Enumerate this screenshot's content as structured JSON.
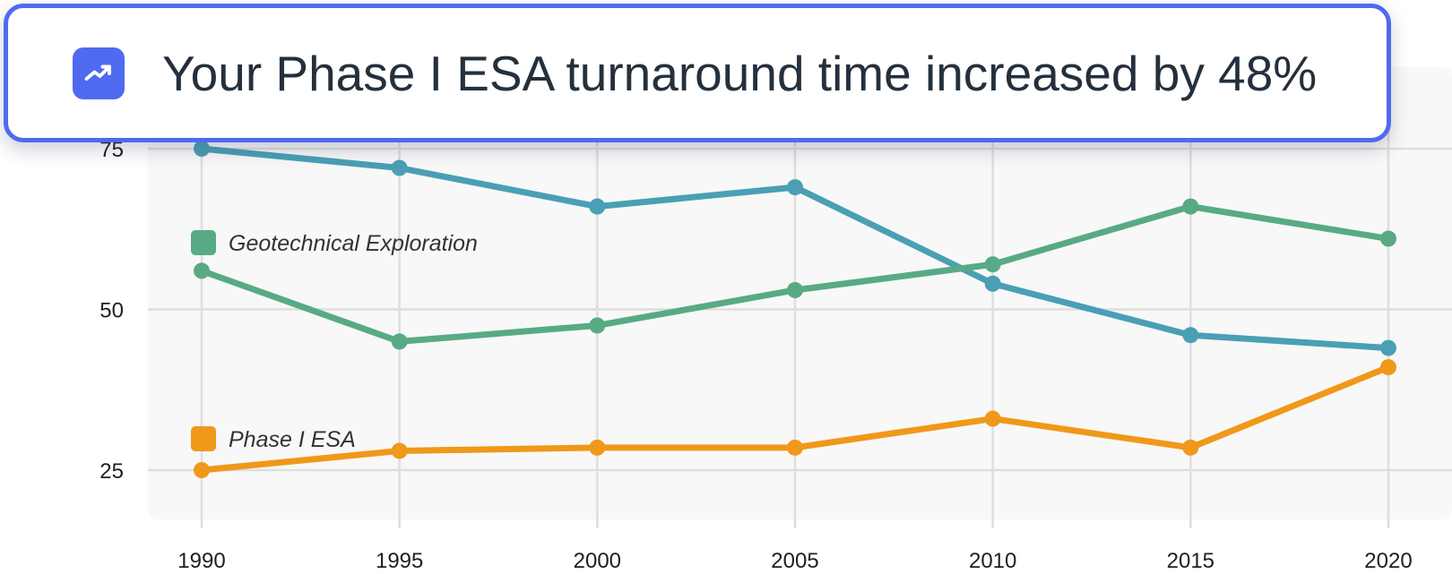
{
  "notification": {
    "message": "Your Phase I ESA turnaround time increased by 48%",
    "icon": "trending-up-icon",
    "accent_color": "#4f6af0"
  },
  "chart_data": {
    "type": "line",
    "title": "",
    "xlabel": "",
    "ylabel": "",
    "x": [
      1990,
      1995,
      2000,
      2005,
      2010,
      2015,
      2020
    ],
    "x_tick_labels": [
      "1990",
      "1995",
      "2000",
      "2005",
      "2010",
      "2015",
      "2020"
    ],
    "y_tick_labels": [
      "25",
      "50",
      "75"
    ],
    "y_ticks": [
      25,
      50,
      75
    ],
    "ylim": [
      18,
      82
    ],
    "grid": true,
    "series": [
      {
        "name": "",
        "color": "#4a9fb5",
        "values": [
          75,
          72,
          66,
          69,
          54,
          46,
          44
        ]
      },
      {
        "name": "Geotechnical Exploration",
        "color": "#58aa85",
        "values": [
          56,
          45,
          47.5,
          53,
          57,
          66,
          61
        ]
      },
      {
        "name": "Phase I ESA",
        "color": "#f09819",
        "values": [
          25,
          28,
          28.5,
          28.5,
          33,
          28.5,
          41
        ]
      }
    ]
  }
}
